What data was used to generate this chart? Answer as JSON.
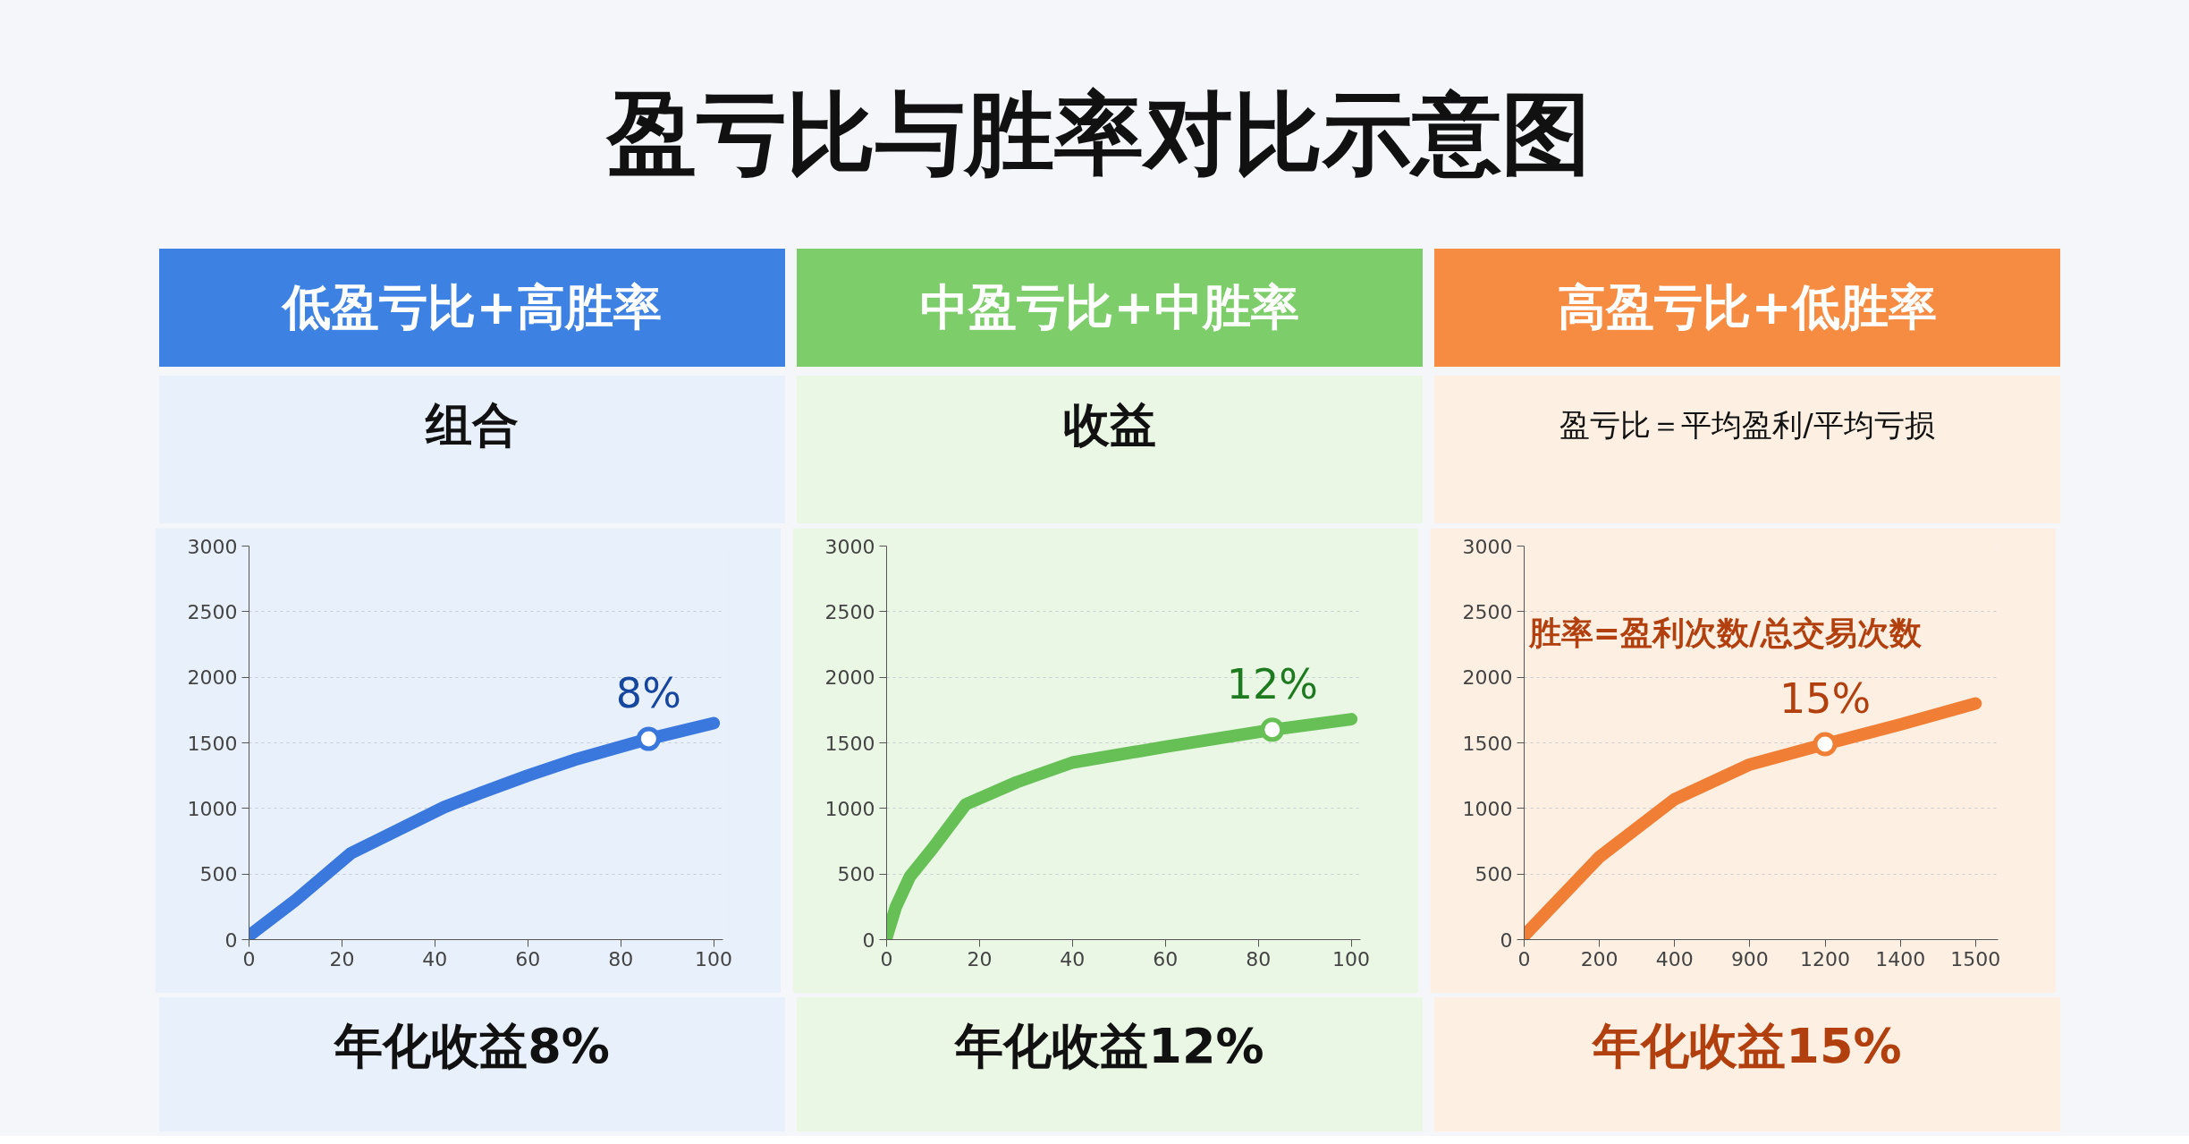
{
  "chart_data": [
    {
      "type": "line",
      "title": "低盈亏比+高胜率",
      "subtitle": "组合",
      "x": [
        0,
        10,
        22,
        30,
        42,
        50,
        60,
        70,
        86,
        100
      ],
      "series": [
        {
          "color": "#3a78dd",
          "values": [
            30,
            300,
            660,
            800,
            1010,
            1120,
            1250,
            1370,
            1530,
            1650
          ]
        }
      ],
      "xlim": [
        0,
        102
      ],
      "ylim": [
        0,
        3000
      ],
      "xticks": [
        0,
        20,
        40,
        60,
        80,
        100
      ],
      "yticks": [
        0,
        500,
        1000,
        1500,
        2000,
        2500,
        3000
      ],
      "grid": "y",
      "tick_labels": true,
      "annotations": [
        "盈亏比与胜率对比示意图",
        {
          "text": "8%",
          "x": 86,
          "y": 1530
        },
        "年化收益8%"
      ]
    },
    {
      "type": "line",
      "title": "中盈亏比+中胜率",
      "subtitle": "收益",
      "x": [
        0,
        2,
        5,
        10,
        17,
        28,
        40,
        60,
        83,
        100
      ],
      "series": [
        {
          "color": "#66c055",
          "values": [
            20,
            250,
            480,
            700,
            1030,
            1200,
            1350,
            1470,
            1600,
            1680
          ]
        }
      ],
      "xlim": [
        0,
        102
      ],
      "ylim": [
        0,
        3000
      ],
      "xticks": [
        0,
        20,
        40,
        60,
        80,
        100
      ],
      "yticks": [
        0,
        500,
        1000,
        1500,
        2000,
        2500,
        3000
      ],
      "grid": "y",
      "annotations": [
        {
          "text": "12%",
          "x": 83,
          "y": 1600
        },
        "年化收益12%"
      ]
    },
    {
      "type": "line",
      "title": "高盈亏比+低胜率",
      "subtitle": "盈亏比＝平均盈利/平均亏损",
      "categories": [
        "0",
        "200",
        "400",
        "900",
        "1200",
        "1400",
        "1500"
      ],
      "series": [
        {
          "color": "#f07f35",
          "values": [
            30,
            630,
            1070,
            1335,
            1490,
            1640,
            1800
          ]
        }
      ],
      "ylim": [
        0,
        3000
      ],
      "yticks": [
        0,
        500,
        1000,
        1500,
        2000,
        2500,
        3000
      ],
      "grid": "y",
      "annotations": [
        {
          "text": "15%",
          "x": "1200",
          "y": 1490
        },
        "胜率=盈利次数/总交易次数",
        "年化收益15%"
      ]
    }
  ]
}
